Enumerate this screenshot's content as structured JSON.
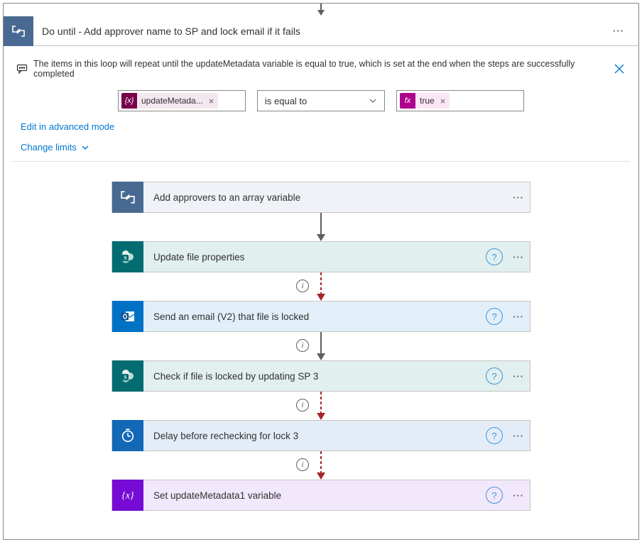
{
  "header": {
    "title": "Do until - Add approver name to SP and lock email if it fails",
    "icon_bg": "#486991"
  },
  "note": {
    "text": "The items in this loop will repeat until the updateMetadata variable is equal to true, which is set at the end when the steps are successfully completed"
  },
  "condition": {
    "left_token": {
      "label": "updateMetada...",
      "icon_text": "{x}",
      "icon_bg": "#77004d",
      "pill_bg": "#f3e7f0"
    },
    "operator": "is equal to",
    "right_token": {
      "label": "true",
      "icon_text": "fx",
      "icon_bg": "#ad008c",
      "pill_bg": "#f9e6f4"
    }
  },
  "links": {
    "advanced": "Edit in advanced mode",
    "limits": "Change limits"
  },
  "steps": [
    {
      "title": "Add approvers to an array variable",
      "icon_bg": "#486991",
      "body_bg": "#eff3f7",
      "icon": "loop",
      "has_help": false,
      "connector_after": "solid"
    },
    {
      "title": "Update file properties",
      "icon_bg": "#036c70",
      "body_bg": "#e1efef",
      "icon": "sharepoint",
      "has_help": true,
      "connector_after": "dashed-with-info"
    },
    {
      "title": "Send an email (V2) that file is locked",
      "icon_bg": "#0072c6",
      "body_bg": "#e2eff8",
      "icon": "outlook",
      "has_help": true,
      "connector_after": "solid-with-info"
    },
    {
      "title": "Check if file is locked by updating SP 3",
      "icon_bg": "#036c70",
      "body_bg": "#e1efef",
      "icon": "sharepoint",
      "has_help": true,
      "connector_after": "dashed-with-info"
    },
    {
      "title": "Delay before rechecking for lock 3",
      "icon_bg": "#1267b6",
      "body_bg": "#e4edf7",
      "icon": "clock",
      "has_help": true,
      "connector_after": "dashed-with-info"
    },
    {
      "title": "Set updateMetadata1 variable",
      "icon_bg": "#770bd6",
      "body_bg": "#f1e8fb",
      "icon": "variable",
      "has_help": true,
      "connector_after": ""
    }
  ],
  "colors": {
    "arrow_gray": "#605e5c",
    "arrow_red": "#a4262c"
  }
}
